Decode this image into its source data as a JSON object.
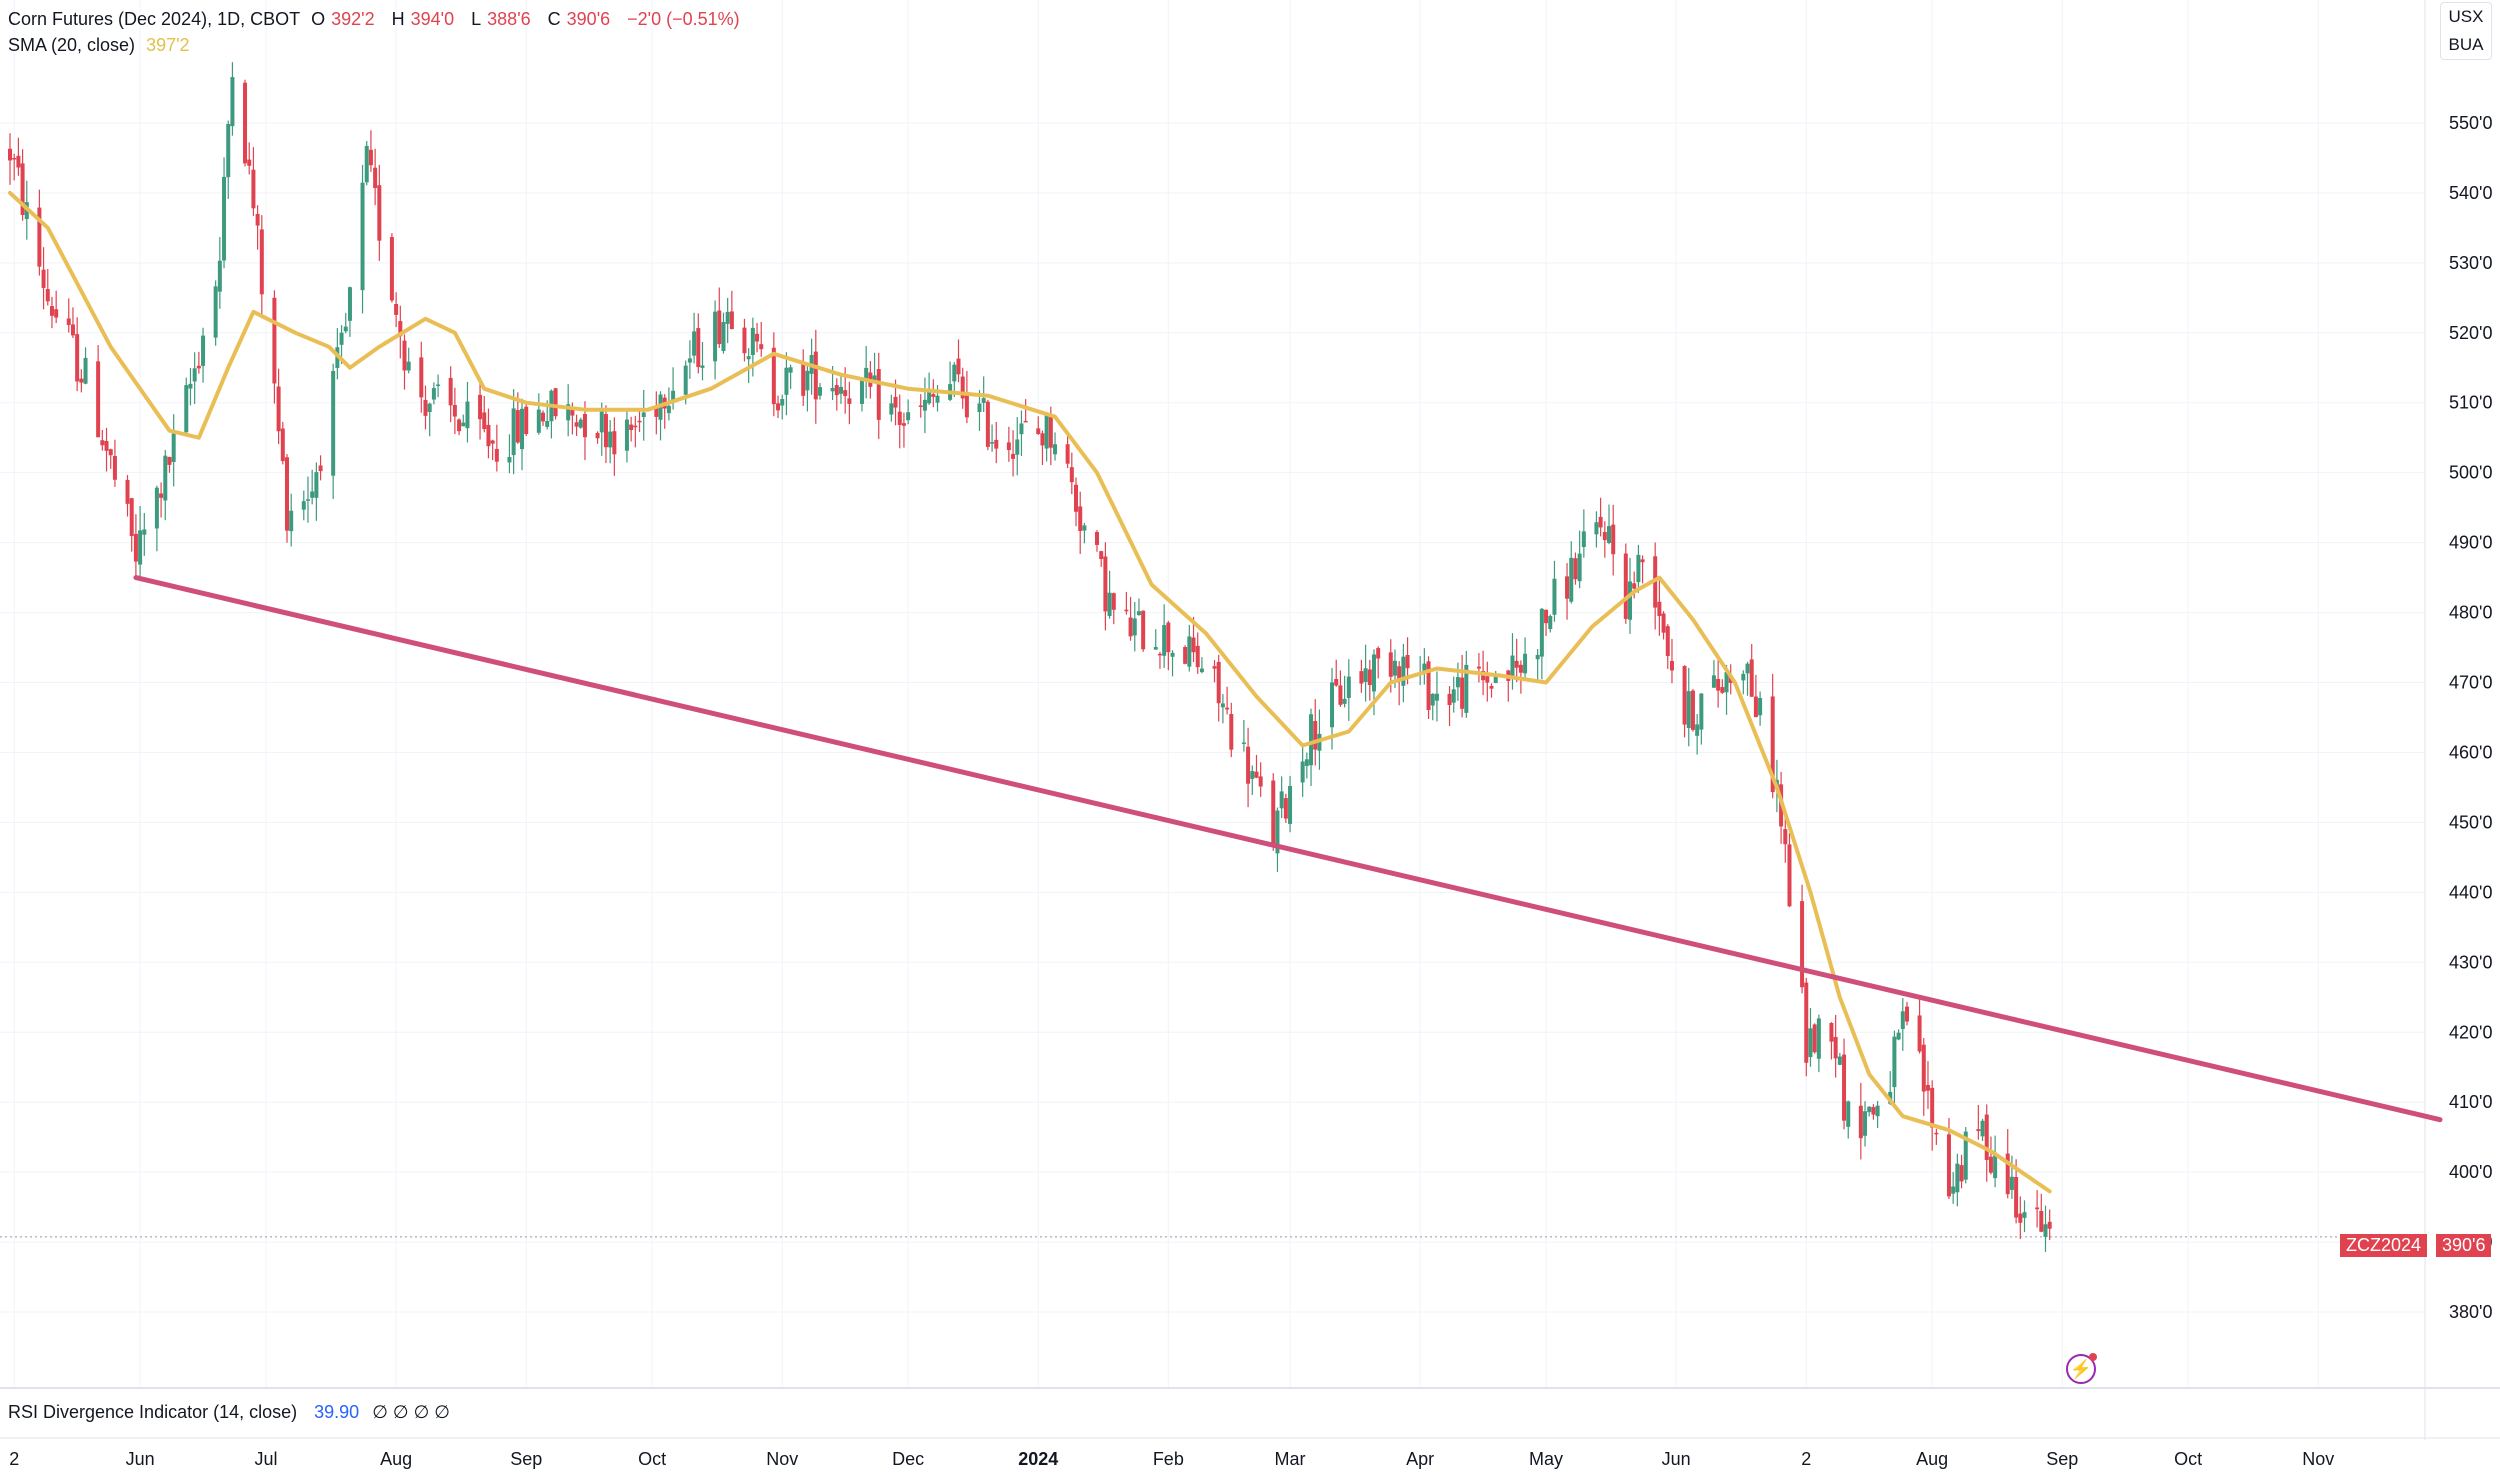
{
  "header": {
    "symbol_title": "Corn Futures (Dec 2024), 1D, CBOT",
    "open_label": "O",
    "open": "392'2",
    "high_label": "H",
    "high": "394'0",
    "low_label": "L",
    "low": "388'6",
    "close_label": "C",
    "close": "390'6",
    "change": "−2'0 (−0.51%)",
    "sma_label": "SMA (20, close)",
    "sma_value": "397'2"
  },
  "units": {
    "currency": "USX",
    "unit": "BUA"
  },
  "price_tag": {
    "symbol": "ZCZ2024",
    "price": "390'6"
  },
  "rsi_pane": {
    "label": "RSI Divergence Indicator (14, close)",
    "value": "39.90",
    "placeholders": "∅ ∅ ∅ ∅"
  },
  "colors": {
    "up": "#3d9a7e",
    "down": "#e0424f",
    "sma": "#e9be55",
    "trendline": "#cf4f7a",
    "grid": "#f0f3fa",
    "axis_text": "#131722"
  },
  "chart_data": {
    "type": "candlestick",
    "title": "Corn Futures (Dec 2024), 1D, CBOT",
    "y_axis": {
      "ticks": [
        380,
        390,
        400,
        410,
        420,
        430,
        440,
        450,
        460,
        470,
        480,
        490,
        500,
        510,
        520,
        530,
        540,
        550
      ],
      "tick_labels": [
        "380'0",
        "390'0",
        "400'0",
        "410'0",
        "420'0",
        "430'0",
        "440'0",
        "450'0",
        "460'0",
        "470'0",
        "480'0",
        "490'0",
        "500'0",
        "510'0",
        "520'0",
        "530'0",
        "540'0",
        "550'0"
      ],
      "range": [
        371,
        564
      ]
    },
    "x_axis": {
      "range": [
        "2023-05-01",
        "2024-11-30"
      ],
      "ticks": [
        {
          "label": "2",
          "date": "2023-05-02",
          "bold": false
        },
        {
          "label": "Jun",
          "date": "2023-06-01",
          "bold": false
        },
        {
          "label": "Jul",
          "date": "2023-07-01",
          "bold": false
        },
        {
          "label": "Aug",
          "date": "2023-08-01",
          "bold": false
        },
        {
          "label": "Sep",
          "date": "2023-09-01",
          "bold": false
        },
        {
          "label": "Oct",
          "date": "2023-10-01",
          "bold": false
        },
        {
          "label": "Nov",
          "date": "2023-11-01",
          "bold": false
        },
        {
          "label": "Dec",
          "date": "2023-12-01",
          "bold": false
        },
        {
          "label": "2024",
          "date": "2024-01-01",
          "bold": true
        },
        {
          "label": "Feb",
          "date": "2024-02-01",
          "bold": false
        },
        {
          "label": "Mar",
          "date": "2024-03-01",
          "bold": false
        },
        {
          "label": "Apr",
          "date": "2024-04-01",
          "bold": false
        },
        {
          "label": "May",
          "date": "2024-05-01",
          "bold": false
        },
        {
          "label": "Jun",
          "date": "2024-06-01",
          "bold": false
        },
        {
          "label": "2",
          "date": "2024-07-02",
          "bold": false
        },
        {
          "label": "Aug",
          "date": "2024-08-01",
          "bold": false
        },
        {
          "label": "Sep",
          "date": "2024-09-01",
          "bold": false
        },
        {
          "label": "Oct",
          "date": "2024-10-01",
          "bold": false
        },
        {
          "label": "Nov",
          "date": "2024-11-01",
          "bold": false
        }
      ]
    },
    "close_path": [
      {
        "date": "2023-05-01",
        "close": 546
      },
      {
        "date": "2023-05-10",
        "close": 525
      },
      {
        "date": "2023-05-20",
        "close": 512
      },
      {
        "date": "2023-05-31",
        "close": 488
      },
      {
        "date": "2023-06-10",
        "close": 505
      },
      {
        "date": "2023-06-20",
        "close": 530
      },
      {
        "date": "2023-06-23",
        "close": 560
      },
      {
        "date": "2023-06-28",
        "close": 538
      },
      {
        "date": "2023-07-06",
        "close": 495
      },
      {
        "date": "2023-07-12",
        "close": 498
      },
      {
        "date": "2023-07-20",
        "close": 520
      },
      {
        "date": "2023-07-25",
        "close": 544
      },
      {
        "date": "2023-08-05",
        "close": 512
      },
      {
        "date": "2023-08-15",
        "close": 508
      },
      {
        "date": "2023-08-25",
        "close": 504
      },
      {
        "date": "2023-09-05",
        "close": 509
      },
      {
        "date": "2023-09-15",
        "close": 508
      },
      {
        "date": "2023-09-25",
        "close": 505
      },
      {
        "date": "2023-10-05",
        "close": 513
      },
      {
        "date": "2023-10-15",
        "close": 520
      },
      {
        "date": "2023-10-20",
        "close": 524
      },
      {
        "date": "2023-10-30",
        "close": 512
      },
      {
        "date": "2023-11-08",
        "close": 514
      },
      {
        "date": "2023-11-20",
        "close": 512
      },
      {
        "date": "2023-12-01",
        "close": 507
      },
      {
        "date": "2023-12-12",
        "close": 513
      },
      {
        "date": "2023-12-22",
        "close": 505
      },
      {
        "date": "2024-01-05",
        "close": 506
      },
      {
        "date": "2024-01-12",
        "close": 492
      },
      {
        "date": "2024-01-20",
        "close": 478
      },
      {
        "date": "2024-01-30",
        "close": 477
      },
      {
        "date": "2024-02-10",
        "close": 472
      },
      {
        "date": "2024-02-20",
        "close": 458
      },
      {
        "date": "2024-02-26",
        "close": 448
      },
      {
        "date": "2024-03-05",
        "close": 462
      },
      {
        "date": "2024-03-15",
        "close": 470
      },
      {
        "date": "2024-03-26",
        "close": 474
      },
      {
        "date": "2024-04-05",
        "close": 468
      },
      {
        "date": "2024-04-15",
        "close": 470
      },
      {
        "date": "2024-04-25",
        "close": 472
      },
      {
        "date": "2024-05-05",
        "close": 484
      },
      {
        "date": "2024-05-15",
        "close": 493
      },
      {
        "date": "2024-05-20",
        "close": 482
      },
      {
        "date": "2024-05-25",
        "close": 489
      },
      {
        "date": "2024-06-03",
        "close": 465
      },
      {
        "date": "2024-06-12",
        "close": 470
      },
      {
        "date": "2024-06-17",
        "close": 474
      },
      {
        "date": "2024-06-25",
        "close": 455
      },
      {
        "date": "2024-06-28",
        "close": 440
      },
      {
        "date": "2024-07-02",
        "close": 418
      },
      {
        "date": "2024-07-08",
        "close": 422
      },
      {
        "date": "2024-07-12",
        "close": 407
      },
      {
        "date": "2024-07-20",
        "close": 410
      },
      {
        "date": "2024-07-26",
        "close": 422
      },
      {
        "date": "2024-08-05",
        "close": 398
      },
      {
        "date": "2024-08-12",
        "close": 406
      },
      {
        "date": "2024-08-20",
        "close": 398
      },
      {
        "date": "2024-08-26",
        "close": 392
      },
      {
        "date": "2024-08-29",
        "close": 390.75
      }
    ],
    "sma_path": [
      {
        "date": "2023-05-01",
        "value": 540
      },
      {
        "date": "2023-05-10",
        "value": 535
      },
      {
        "date": "2023-05-25",
        "value": 518
      },
      {
        "date": "2023-06-08",
        "value": 506
      },
      {
        "date": "2023-06-15",
        "value": 505
      },
      {
        "date": "2023-06-22",
        "value": 515
      },
      {
        "date": "2023-06-28",
        "value": 523
      },
      {
        "date": "2023-07-08",
        "value": 520
      },
      {
        "date": "2023-07-16",
        "value": 518
      },
      {
        "date": "2023-07-21",
        "value": 515
      },
      {
        "date": "2023-07-28",
        "value": 518
      },
      {
        "date": "2023-08-08",
        "value": 522
      },
      {
        "date": "2023-08-15",
        "value": 520
      },
      {
        "date": "2023-08-22",
        "value": 512
      },
      {
        "date": "2023-09-01",
        "value": 510
      },
      {
        "date": "2023-09-15",
        "value": 509
      },
      {
        "date": "2023-09-30",
        "value": 509
      },
      {
        "date": "2023-10-15",
        "value": 512
      },
      {
        "date": "2023-10-30",
        "value": 517
      },
      {
        "date": "2023-11-15",
        "value": 514
      },
      {
        "date": "2023-12-01",
        "value": 512
      },
      {
        "date": "2023-12-20",
        "value": 511
      },
      {
        "date": "2024-01-05",
        "value": 508
      },
      {
        "date": "2024-01-15",
        "value": 500
      },
      {
        "date": "2024-01-28",
        "value": 484
      },
      {
        "date": "2024-02-10",
        "value": 477
      },
      {
        "date": "2024-02-22",
        "value": 468
      },
      {
        "date": "2024-03-04",
        "value": 461
      },
      {
        "date": "2024-03-15",
        "value": 463
      },
      {
        "date": "2024-03-25",
        "value": 470
      },
      {
        "date": "2024-04-05",
        "value": 472
      },
      {
        "date": "2024-04-20",
        "value": 471
      },
      {
        "date": "2024-05-01",
        "value": 470
      },
      {
        "date": "2024-05-12",
        "value": 478
      },
      {
        "date": "2024-05-22",
        "value": 483
      },
      {
        "date": "2024-05-28",
        "value": 485
      },
      {
        "date": "2024-06-05",
        "value": 479
      },
      {
        "date": "2024-06-15",
        "value": 470
      },
      {
        "date": "2024-06-25",
        "value": 455
      },
      {
        "date": "2024-07-03",
        "value": 440
      },
      {
        "date": "2024-07-10",
        "value": 425
      },
      {
        "date": "2024-07-17",
        "value": 414
      },
      {
        "date": "2024-07-25",
        "value": 408
      },
      {
        "date": "2024-08-05",
        "value": 406
      },
      {
        "date": "2024-08-15",
        "value": 403
      },
      {
        "date": "2024-08-29",
        "value": 397.25
      }
    ],
    "trendline": {
      "start": {
        "date": "2023-05-31",
        "value": 485
      },
      "end": {
        "date": "2024-11-30",
        "value": 407.5
      }
    },
    "last_price": 390.75
  }
}
